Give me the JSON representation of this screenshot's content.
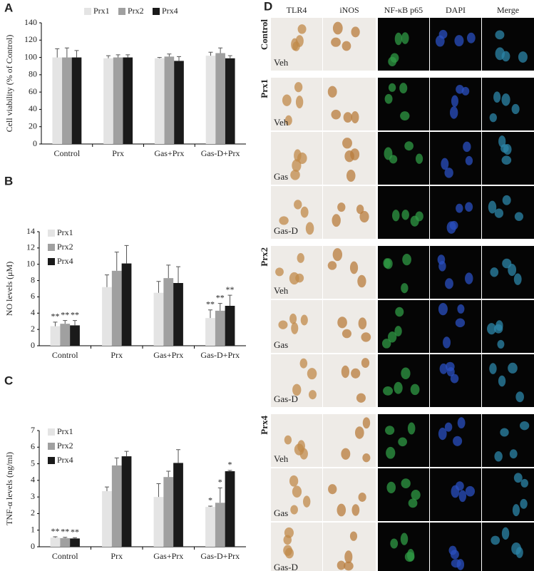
{
  "chart_data": [
    {
      "type": "bar",
      "panel": "A",
      "ylabel": "Cell viability  (% of Control)",
      "categories": [
        "Control",
        "Prx",
        "Gas+Prx",
        "Gas-D+Prx"
      ],
      "series": [
        {
          "name": "Prx1",
          "color": "#e4e4e4",
          "values": [
            100,
            99,
            99,
            102
          ],
          "errors": [
            10,
            3,
            1,
            4
          ]
        },
        {
          "name": "Prx2",
          "color": "#a0a0a0",
          "values": [
            100,
            100,
            101,
            105
          ],
          "errors": [
            11,
            3,
            3,
            6
          ]
        },
        {
          "name": "Prx4",
          "color": "#1a1a1a",
          "values": [
            100,
            100,
            96,
            99
          ],
          "errors": [
            8,
            3,
            5,
            3
          ]
        }
      ],
      "ylim": [
        0,
        140
      ],
      "yticks": [
        0,
        20,
        40,
        60,
        80,
        100,
        120,
        140
      ],
      "legend": "top"
    },
    {
      "type": "bar",
      "panel": "B",
      "ylabel": "NO levels (μM)",
      "categories": [
        "Control",
        "Prx",
        "Gas+Prx",
        "Gas-D+Prx"
      ],
      "series": [
        {
          "name": "Prx1",
          "color": "#e4e4e4",
          "values": [
            2.4,
            7.2,
            6.5,
            3.4
          ],
          "errors": [
            0.5,
            1.5,
            1.4,
            1.0
          ],
          "significance": [
            "**",
            null,
            null,
            "**"
          ]
        },
        {
          "name": "Prx2",
          "color": "#a0a0a0",
          "values": [
            2.7,
            9.2,
            8.3,
            4.3
          ],
          "errors": [
            0.4,
            2.3,
            1.6,
            0.9
          ],
          "significance": [
            "**",
            null,
            null,
            "**"
          ]
        },
        {
          "name": "Prx4",
          "color": "#1a1a1a",
          "values": [
            2.5,
            10.1,
            7.7,
            4.9
          ],
          "errors": [
            0.6,
            2.2,
            2.0,
            1.3
          ],
          "significance": [
            "**",
            null,
            null,
            "**"
          ]
        }
      ],
      "ylim": [
        0,
        14
      ],
      "yticks": [
        0,
        2,
        4,
        6,
        8,
        10,
        12,
        14
      ],
      "legend": "top-left"
    },
    {
      "type": "bar",
      "panel": "C",
      "ylabel": "TNF-α levels (ng/ml)",
      "categories": [
        "Control",
        "Prx",
        "Gas+Prx",
        "Gas-D+Prx"
      ],
      "series": [
        {
          "name": "Prx1",
          "color": "#e4e4e4",
          "values": [
            0.55,
            3.35,
            3.0,
            2.4
          ],
          "errors": [
            0.05,
            0.25,
            0.8,
            0.05
          ],
          "significance": [
            "**",
            null,
            null,
            "*"
          ]
        },
        {
          "name": "Prx2",
          "color": "#a0a0a0",
          "values": [
            0.52,
            4.9,
            4.2,
            2.65
          ],
          "errors": [
            0.05,
            0.45,
            0.35,
            0.9
          ],
          "significance": [
            "**",
            null,
            null,
            "*"
          ]
        },
        {
          "name": "Prx4",
          "color": "#1a1a1a",
          "values": [
            0.5,
            5.45,
            5.05,
            4.55
          ],
          "errors": [
            0.05,
            0.3,
            0.8,
            0.05
          ],
          "significance": [
            "**",
            null,
            null,
            "*"
          ]
        }
      ],
      "ylim": [
        0,
        7
      ],
      "yticks": [
        0,
        1,
        2,
        3,
        4,
        5,
        6,
        7
      ],
      "legend": "top-left"
    }
  ],
  "panel_d": {
    "label": "D",
    "columns": [
      "TLR4",
      "iNOS",
      "NF-κB p65",
      "DAPI",
      "Merge"
    ],
    "groups": [
      {
        "name": "Control",
        "rows": [
          "Veh"
        ]
      },
      {
        "name": "Prx1",
        "rows": [
          "Veh",
          "Gas",
          "Gas-D"
        ]
      },
      {
        "name": "Prx2",
        "rows": [
          "Veh",
          "Gas",
          "Gas-D"
        ]
      },
      {
        "name": "Prx4",
        "rows": [
          "Veh",
          "Gas",
          "Gas-D"
        ]
      }
    ]
  }
}
